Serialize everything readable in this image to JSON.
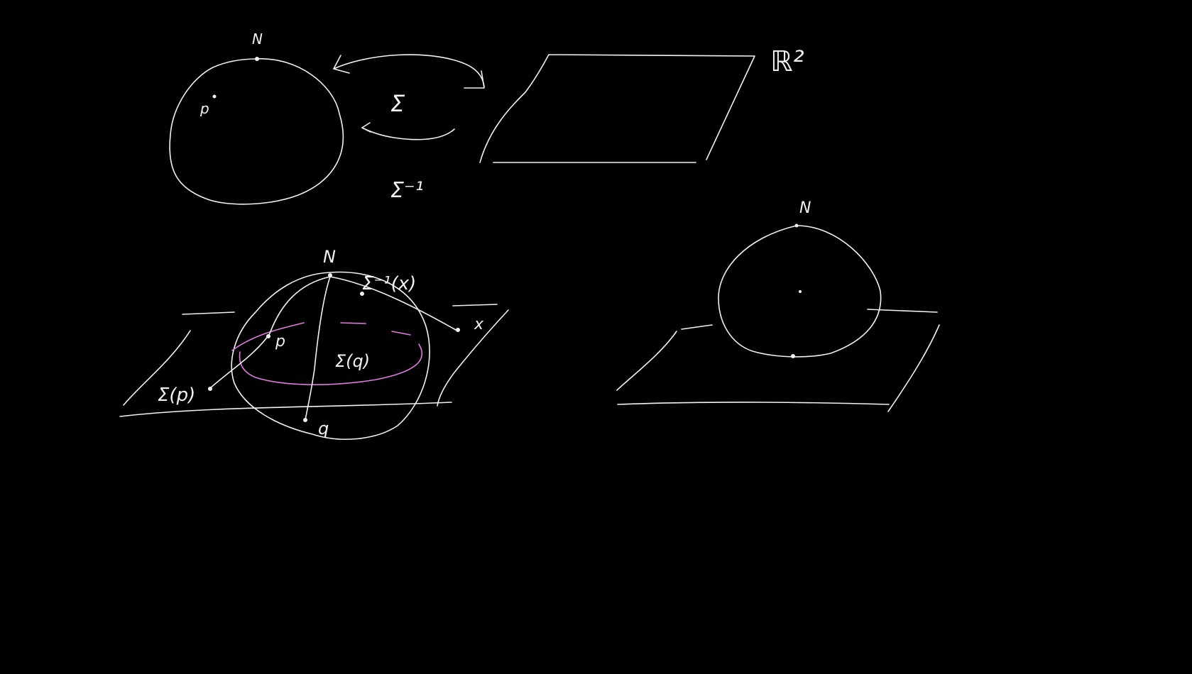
{
  "colors": {
    "background": "#000000",
    "stroke": "#f2f2f2",
    "highlight": "#e07be0"
  },
  "sketch1": {
    "north_label": "N",
    "point_label": "p",
    "map_label": "Σ",
    "inverse_map_label": "Σ⁻¹",
    "plane_label": "ℝ²"
  },
  "sketch2": {
    "north_label": "N",
    "point_p_label": "p",
    "sigma_p_label": "Σ(p)",
    "sigma_q_label": "Σ(q)",
    "q_label": "q",
    "inverse_x_label": "Σ⁻¹(x)",
    "x_label": "x"
  },
  "sketch3": {
    "north_label": "N"
  }
}
